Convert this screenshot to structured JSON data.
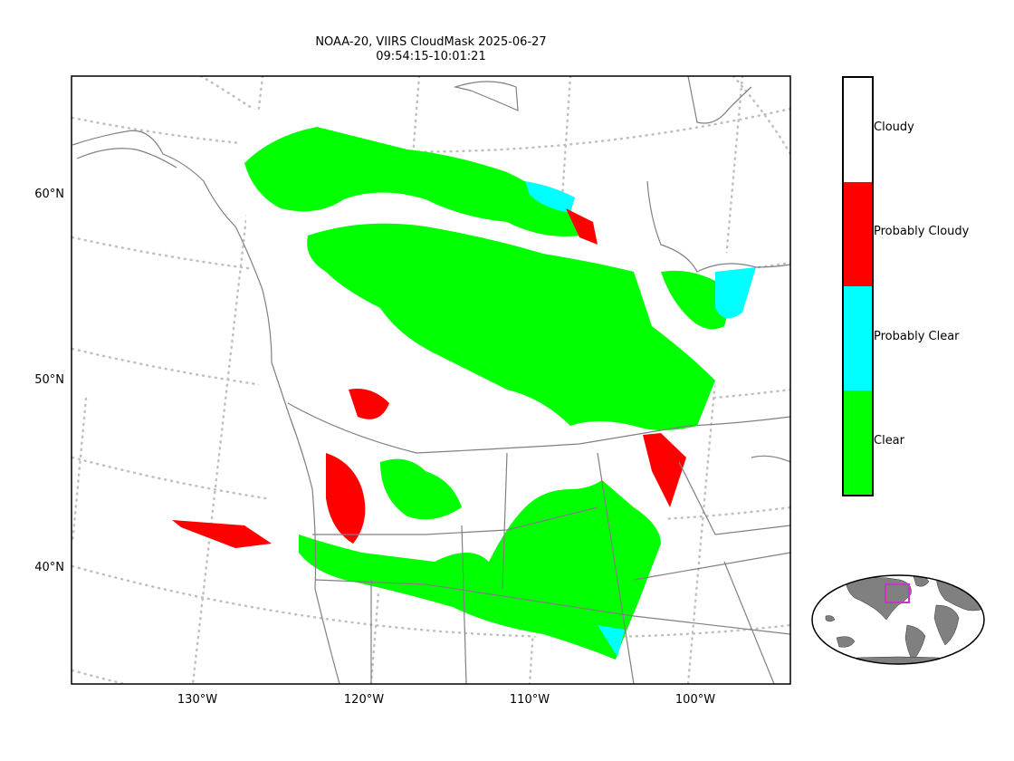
{
  "title": {
    "line1": "NOAA-20, VIIRS CloudMask 2025-06-27",
    "line2": "09:54:15-10:01:21"
  },
  "axes": {
    "lat_labels": [
      "60°N",
      "50°N",
      "40°N"
    ],
    "lon_labels": [
      "130°W",
      "120°W",
      "110°W",
      "100°W"
    ]
  },
  "legend": {
    "classes": [
      {
        "label": "Cloudy",
        "color": "#ffffff"
      },
      {
        "label": "Probably Cloudy",
        "color": "#ff0000"
      },
      {
        "label": "Probably Clear",
        "color": "#00ffff"
      },
      {
        "label": "Clear",
        "color": "#00ff00"
      }
    ]
  },
  "colors": {
    "coastline": "#808080",
    "graticule": "#c0c0c0",
    "inset_box": "#cc33cc",
    "inset_land": "#808080"
  }
}
